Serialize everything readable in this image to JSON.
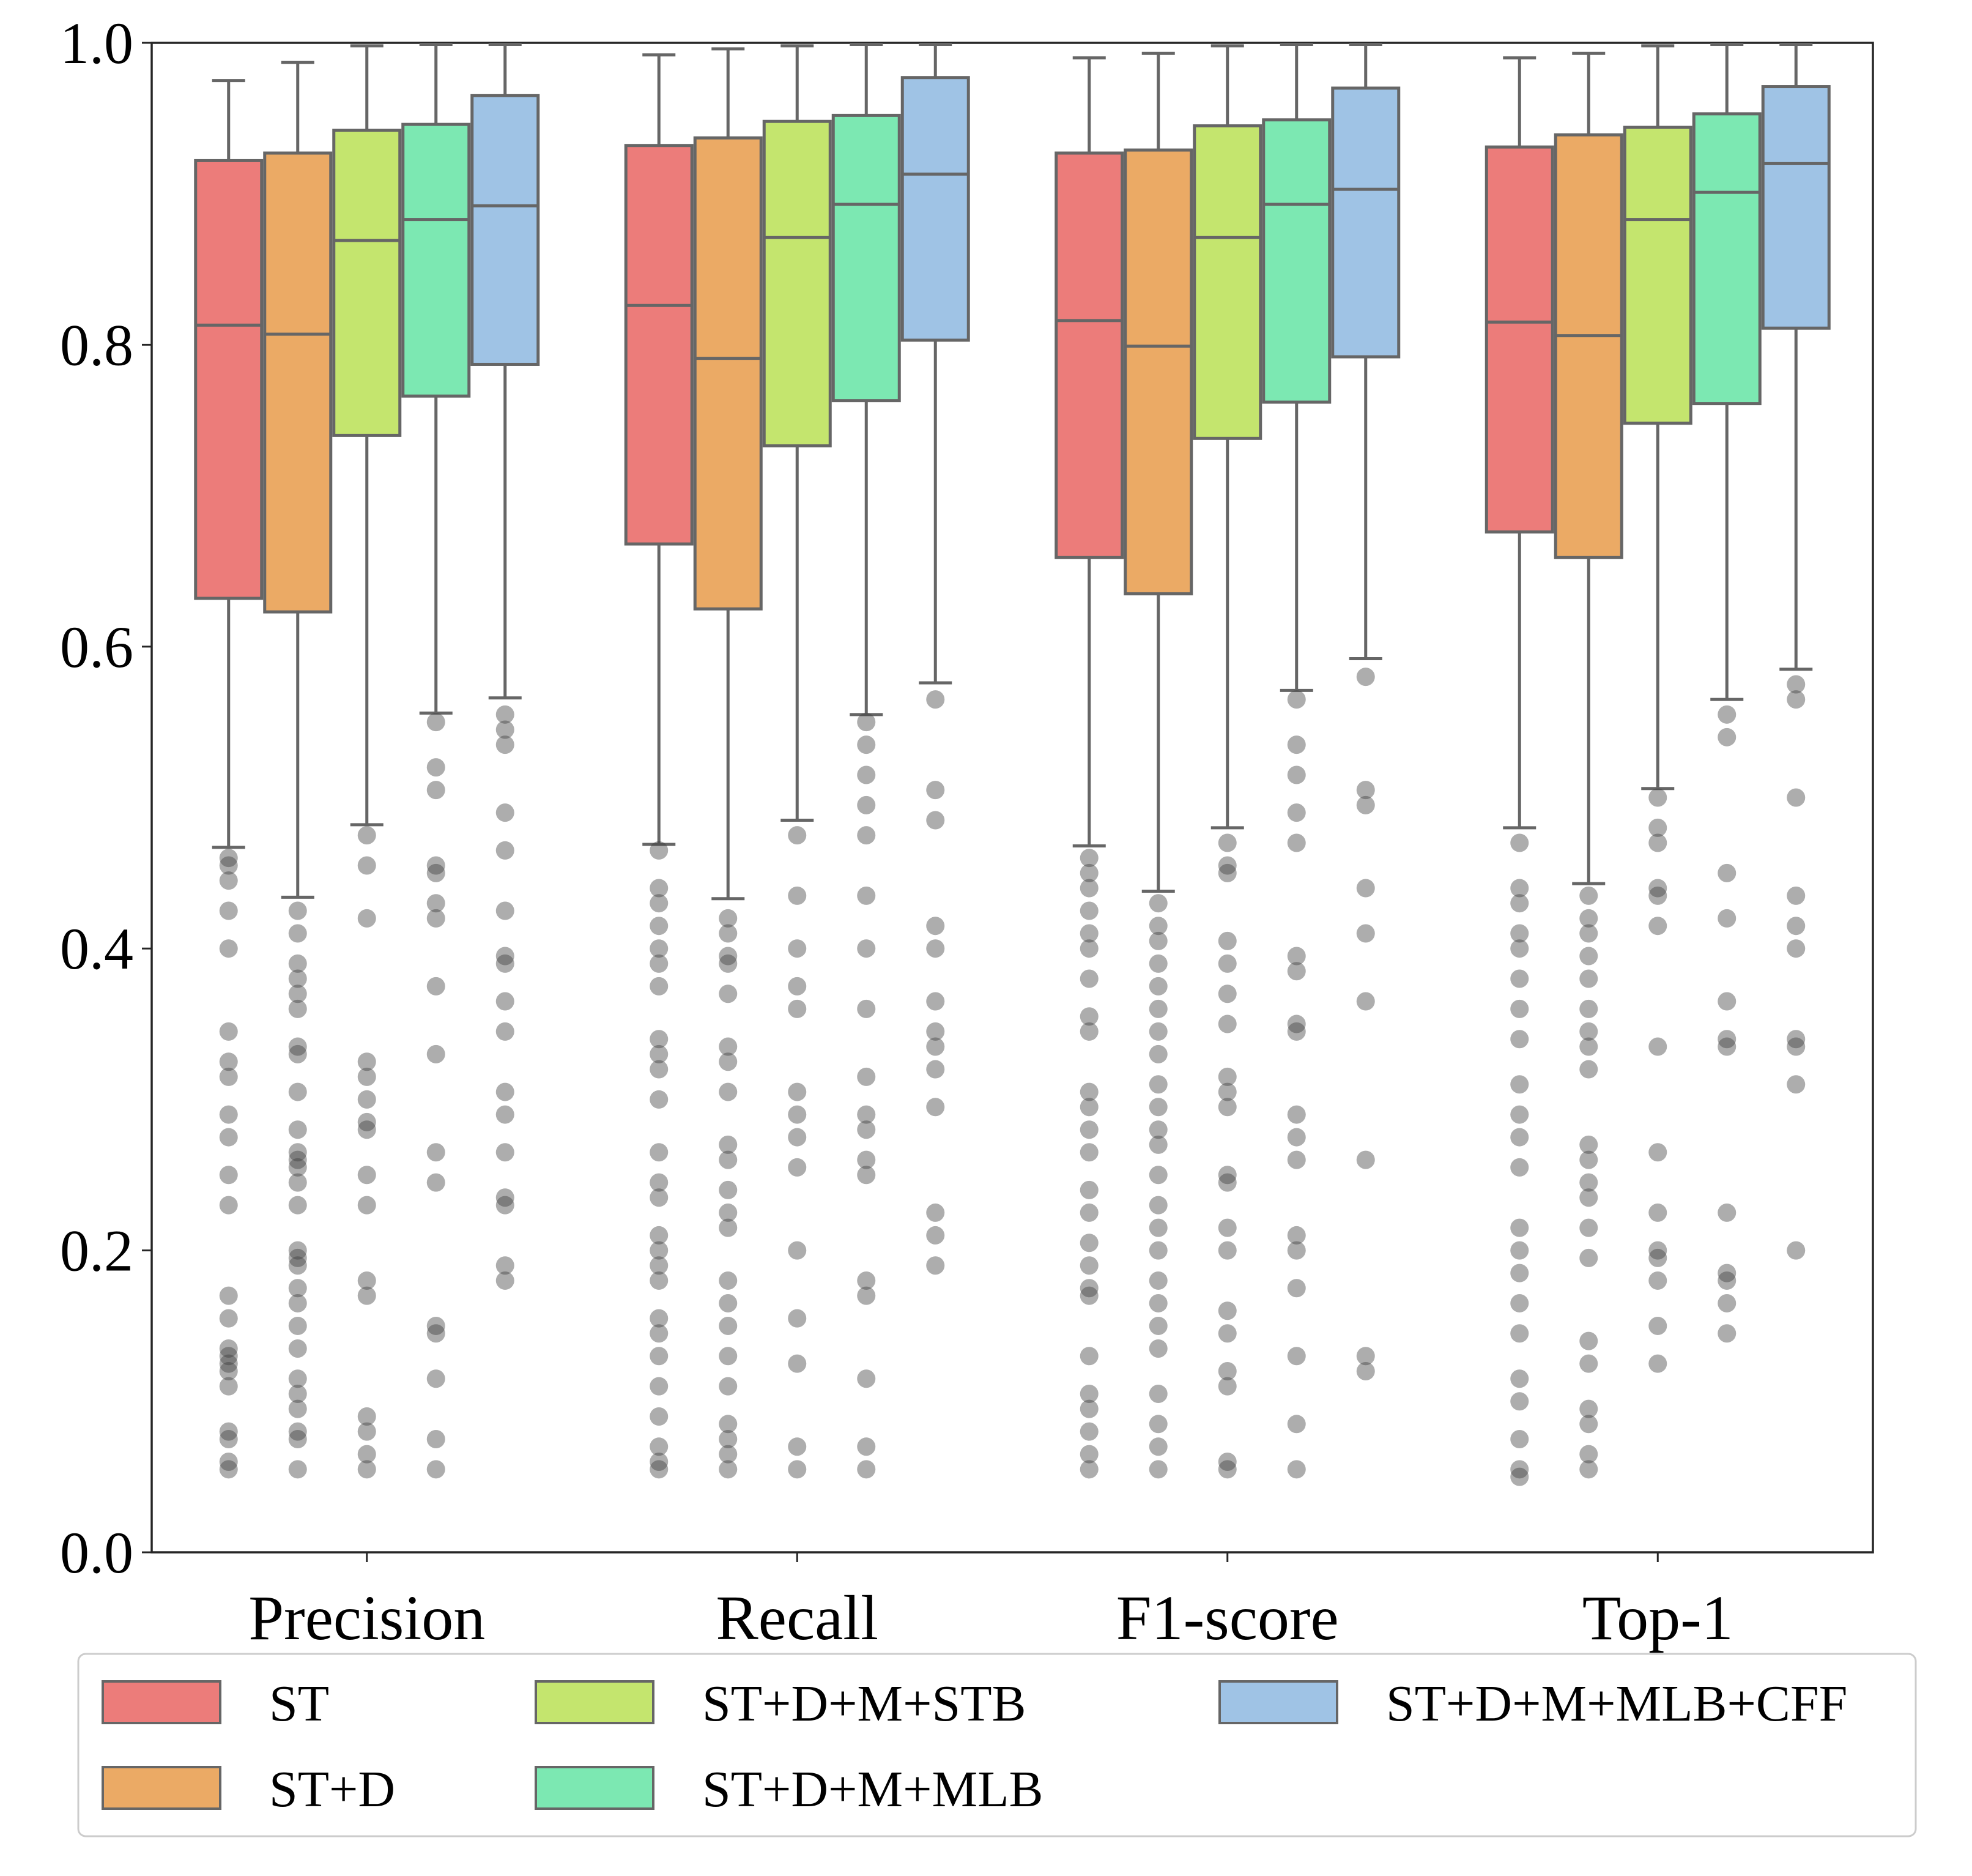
{
  "chart_data": {
    "type": "box",
    "title": "",
    "xlabel": "",
    "ylabel": "",
    "ylim": [
      0,
      1.0
    ],
    "yticks": [
      "0.0",
      "0.2",
      "0.4",
      "0.6",
      "0.8",
      "1.0"
    ],
    "categories": [
      "Precision",
      "Recall",
      "F1-score",
      "Top-1"
    ],
    "legend_position": "bottom",
    "series": [
      {
        "name": "ST",
        "color": "#EC7C7A",
        "boxes": [
          {
            "whislo": 0.467,
            "q1": 0.632,
            "med": 0.813,
            "q3": 0.922,
            "whishi": 0.975,
            "fliers": [
              0.46,
              0.455,
              0.445,
              0.425,
              0.4,
              0.345,
              0.325,
              0.315,
              0.29,
              0.275,
              0.25,
              0.23,
              0.17,
              0.155,
              0.135,
              0.13,
              0.125,
              0.12,
              0.11,
              0.08,
              0.075,
              0.06,
              0.055
            ]
          },
          {
            "whislo": 0.469,
            "q1": 0.668,
            "med": 0.826,
            "q3": 0.932,
            "whishi": 0.992,
            "fliers": [
              0.465,
              0.44,
              0.43,
              0.415,
              0.4,
              0.39,
              0.375,
              0.34,
              0.33,
              0.32,
              0.3,
              0.265,
              0.245,
              0.235,
              0.21,
              0.2,
              0.19,
              0.18,
              0.155,
              0.145,
              0.13,
              0.11,
              0.09,
              0.07,
              0.06,
              0.055
            ]
          },
          {
            "whislo": 0.468,
            "q1": 0.659,
            "med": 0.816,
            "q3": 0.927,
            "whishi": 0.99,
            "fliers": [
              0.46,
              0.45,
              0.44,
              0.425,
              0.41,
              0.4,
              0.38,
              0.355,
              0.345,
              0.305,
              0.295,
              0.28,
              0.265,
              0.24,
              0.225,
              0.205,
              0.19,
              0.175,
              0.17,
              0.13,
              0.105,
              0.095,
              0.08,
              0.065,
              0.055
            ]
          },
          {
            "whislo": 0.48,
            "q1": 0.676,
            "med": 0.815,
            "q3": 0.931,
            "whishi": 0.99,
            "fliers": [
              0.47,
              0.44,
              0.43,
              0.41,
              0.4,
              0.38,
              0.36,
              0.34,
              0.31,
              0.29,
              0.275,
              0.255,
              0.215,
              0.2,
              0.185,
              0.165,
              0.145,
              0.115,
              0.1,
              0.075,
              0.055,
              0.05
            ]
          }
        ]
      },
      {
        "name": "ST+D",
        "color": "#EBAA65",
        "boxes": [
          {
            "whislo": 0.434,
            "q1": 0.623,
            "med": 0.807,
            "q3": 0.927,
            "whishi": 0.987,
            "fliers": [
              0.425,
              0.41,
              0.39,
              0.38,
              0.37,
              0.36,
              0.335,
              0.33,
              0.305,
              0.28,
              0.265,
              0.26,
              0.255,
              0.245,
              0.23,
              0.2,
              0.195,
              0.19,
              0.175,
              0.165,
              0.15,
              0.135,
              0.115,
              0.105,
              0.095,
              0.08,
              0.075,
              0.055
            ]
          },
          {
            "whislo": 0.433,
            "q1": 0.625,
            "med": 0.791,
            "q3": 0.937,
            "whishi": 0.996,
            "fliers": [
              0.42,
              0.41,
              0.395,
              0.39,
              0.37,
              0.335,
              0.325,
              0.305,
              0.27,
              0.26,
              0.24,
              0.225,
              0.215,
              0.18,
              0.165,
              0.15,
              0.13,
              0.11,
              0.085,
              0.075,
              0.065,
              0.055
            ]
          },
          {
            "whislo": 0.438,
            "q1": 0.635,
            "med": 0.799,
            "q3": 0.929,
            "whishi": 0.993,
            "fliers": [
              0.43,
              0.415,
              0.405,
              0.39,
              0.375,
              0.36,
              0.345,
              0.33,
              0.31,
              0.295,
              0.28,
              0.27,
              0.25,
              0.23,
              0.215,
              0.2,
              0.18,
              0.165,
              0.15,
              0.135,
              0.105,
              0.085,
              0.07,
              0.055
            ]
          },
          {
            "whislo": 0.443,
            "q1": 0.659,
            "med": 0.806,
            "q3": 0.939,
            "whishi": 0.993,
            "fliers": [
              0.435,
              0.42,
              0.41,
              0.395,
              0.38,
              0.36,
              0.345,
              0.335,
              0.32,
              0.27,
              0.26,
              0.245,
              0.235,
              0.215,
              0.195,
              0.14,
              0.125,
              0.095,
              0.085,
              0.065,
              0.055
            ]
          }
        ]
      },
      {
        "name": "ST+D+M+STB",
        "color": "#C4E56E",
        "boxes": [
          {
            "whislo": 0.482,
            "q1": 0.74,
            "med": 0.869,
            "q3": 0.942,
            "whishi": 0.998,
            "fliers": [
              0.475,
              0.455,
              0.42,
              0.325,
              0.315,
              0.3,
              0.285,
              0.28,
              0.25,
              0.23,
              0.18,
              0.17,
              0.09,
              0.08,
              0.065,
              0.055
            ]
          },
          {
            "whislo": 0.485,
            "q1": 0.733,
            "med": 0.871,
            "q3": 0.948,
            "whishi": 0.998,
            "fliers": [
              0.475,
              0.435,
              0.4,
              0.375,
              0.36,
              0.305,
              0.29,
              0.275,
              0.255,
              0.2,
              0.155,
              0.125,
              0.07,
              0.055
            ]
          },
          {
            "whislo": 0.48,
            "q1": 0.738,
            "med": 0.871,
            "q3": 0.945,
            "whishi": 0.998,
            "fliers": [
              0.47,
              0.455,
              0.45,
              0.405,
              0.39,
              0.37,
              0.35,
              0.315,
              0.305,
              0.295,
              0.25,
              0.245,
              0.215,
              0.2,
              0.16,
              0.145,
              0.12,
              0.11,
              0.06,
              0.055
            ]
          },
          {
            "whislo": 0.506,
            "q1": 0.748,
            "med": 0.883,
            "q3": 0.944,
            "whishi": 0.998,
            "fliers": [
              0.5,
              0.48,
              0.47,
              0.44,
              0.435,
              0.415,
              0.335,
              0.265,
              0.225,
              0.2,
              0.195,
              0.18,
              0.15,
              0.125
            ]
          }
        ]
      },
      {
        "name": "ST+D+M+MLB",
        "color": "#7CE8B2",
        "boxes": [
          {
            "whislo": 0.556,
            "q1": 0.766,
            "med": 0.883,
            "q3": 0.946,
            "whishi": 0.999,
            "fliers": [
              0.55,
              0.52,
              0.505,
              0.455,
              0.45,
              0.43,
              0.42,
              0.375,
              0.33,
              0.265,
              0.245,
              0.15,
              0.145,
              0.115,
              0.075,
              0.055
            ]
          },
          {
            "whislo": 0.555,
            "q1": 0.763,
            "med": 0.893,
            "q3": 0.952,
            "whishi": 0.999,
            "fliers": [
              0.55,
              0.535,
              0.515,
              0.495,
              0.475,
              0.435,
              0.4,
              0.36,
              0.315,
              0.29,
              0.28,
              0.26,
              0.25,
              0.18,
              0.17,
              0.115,
              0.07,
              0.055
            ]
          },
          {
            "whislo": 0.571,
            "q1": 0.762,
            "med": 0.893,
            "q3": 0.949,
            "whishi": 0.999,
            "fliers": [
              0.565,
              0.535,
              0.515,
              0.49,
              0.47,
              0.395,
              0.385,
              0.35,
              0.345,
              0.29,
              0.275,
              0.26,
              0.21,
              0.2,
              0.175,
              0.13,
              0.085,
              0.055
            ]
          },
          {
            "whislo": 0.565,
            "q1": 0.761,
            "med": 0.901,
            "q3": 0.953,
            "whishi": 0.999,
            "fliers": [
              0.555,
              0.54,
              0.45,
              0.42,
              0.365,
              0.34,
              0.335,
              0.225,
              0.185,
              0.18,
              0.165,
              0.145
            ]
          }
        ]
      },
      {
        "name": "ST+D+M+MLB+CFF",
        "color": "#9FC3E5",
        "boxes": [
          {
            "whislo": 0.566,
            "q1": 0.787,
            "med": 0.892,
            "q3": 0.965,
            "whishi": 0.999,
            "fliers": [
              0.555,
              0.545,
              0.535,
              0.49,
              0.465,
              0.425,
              0.395,
              0.39,
              0.365,
              0.345,
              0.305,
              0.29,
              0.265,
              0.235,
              0.23,
              0.19,
              0.18
            ]
          },
          {
            "whislo": 0.576,
            "q1": 0.803,
            "med": 0.913,
            "q3": 0.977,
            "whishi": 0.999,
            "fliers": [
              0.565,
              0.505,
              0.485,
              0.415,
              0.4,
              0.365,
              0.345,
              0.335,
              0.32,
              0.295,
              0.225,
              0.21,
              0.19
            ]
          },
          {
            "whislo": 0.592,
            "q1": 0.792,
            "med": 0.903,
            "q3": 0.97,
            "whishi": 0.999,
            "fliers": [
              0.58,
              0.505,
              0.495,
              0.44,
              0.41,
              0.365,
              0.26,
              0.13,
              0.12
            ]
          },
          {
            "whislo": 0.585,
            "q1": 0.811,
            "med": 0.92,
            "q3": 0.971,
            "whishi": 0.999,
            "fliers": [
              0.575,
              0.565,
              0.5,
              0.435,
              0.415,
              0.4,
              0.34,
              0.335,
              0.31,
              0.2
            ]
          }
        ]
      }
    ]
  }
}
